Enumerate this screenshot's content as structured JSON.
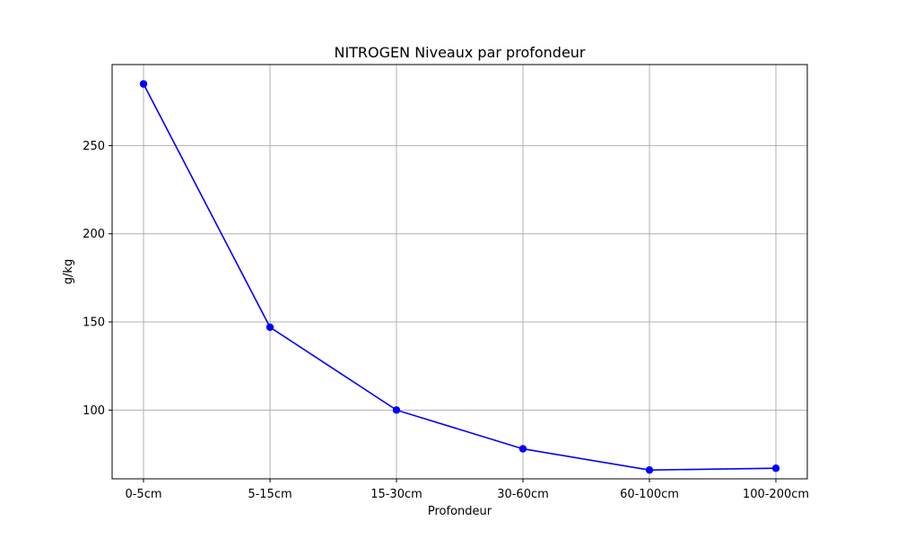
{
  "chart_data": {
    "type": "line",
    "title": "NITROGEN Niveaux par profondeur",
    "xlabel": "Profondeur",
    "ylabel": "g/kg",
    "categories": [
      "0-5cm",
      "5-15cm",
      "15-30cm",
      "30-60cm",
      "60-100cm",
      "100-200cm"
    ],
    "series": [
      {
        "values": [
          285,
          147,
          100,
          78,
          66,
          67
        ],
        "color": "#0000ff",
        "marker": "circle"
      }
    ],
    "ylim": [
      61,
      296
    ],
    "yticks": [
      100,
      150,
      200,
      250
    ],
    "grid": true,
    "legend": "none"
  }
}
